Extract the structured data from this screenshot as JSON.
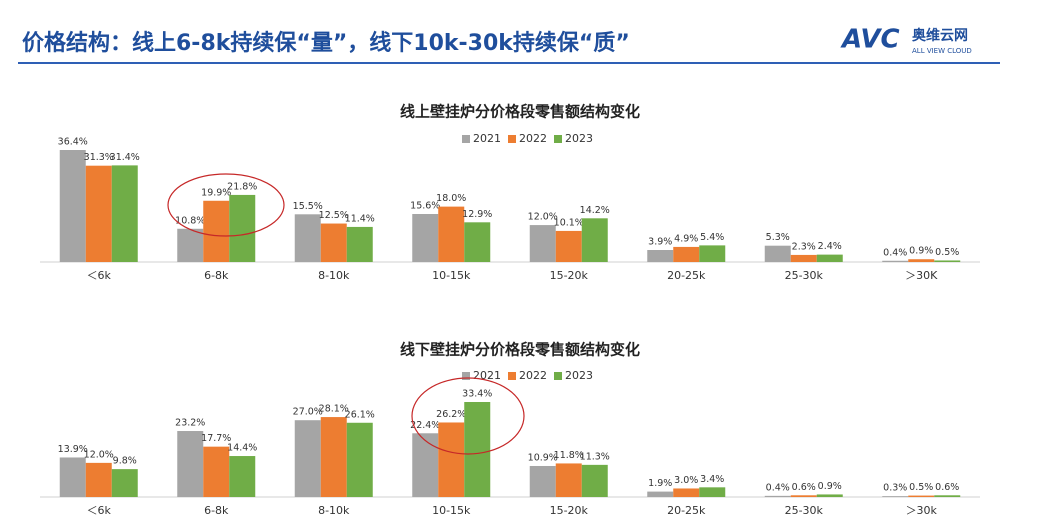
{
  "header": {
    "title": "价格结构：线上6-8k持续保“量”，线下10k-30k持续保“质”",
    "logo": "AVC",
    "logo_cn": "奥维云网",
    "logo_en": "ALL VIEW CLOUD"
  },
  "chart_data": [
    {
      "type": "bar",
      "title": "线上壁挂炉分价格段零售额结构变化",
      "categories": [
        "＜6k",
        "6-8k",
        "8-10k",
        "10-15k",
        "15-20k",
        "20-25k",
        "25-30k",
        "＞30K"
      ],
      "series": [
        {
          "name": "2021",
          "color": "#a5a5a5",
          "values": [
            36.4,
            10.8,
            15.5,
            15.6,
            12.0,
            3.9,
            5.3,
            0.4
          ],
          "value_labels": [
            "36.4%",
            "10.8%",
            "15.5%",
            "15.6%",
            "12.0%",
            "3.9%",
            "5.3%",
            "0.4%"
          ]
        },
        {
          "name": "2022",
          "color": "#ed7d31",
          "values": [
            31.3,
            19.9,
            12.5,
            18.0,
            10.1,
            4.9,
            2.3,
            0.9
          ],
          "value_labels": [
            "31.3%",
            "19.9%",
            "12.5%",
            "18.0%",
            "10.1%",
            "4.9%",
            "2.3%",
            "0.9%"
          ]
        },
        {
          "name": "2023",
          "color": "#70ad47",
          "values": [
            31.4,
            21.8,
            11.4,
            12.9,
            14.2,
            5.4,
            2.4,
            0.5
          ],
          "value_labels": [
            "31.4%",
            "21.8%",
            "11.4%",
            "12.9%",
            "14.2%",
            "5.4%",
            "2.4%",
            "0.5%"
          ]
        }
      ]
    },
    {
      "type": "bar",
      "title": "线下壁挂炉分价格段零售额结构变化",
      "categories": [
        "＜6k",
        "6-8k",
        "8-10k",
        "10-15k",
        "15-20k",
        "20-25k",
        "25-30k",
        "＞30k"
      ],
      "series": [
        {
          "name": "2021",
          "color": "#a5a5a5",
          "values": [
            13.9,
            23.2,
            27.0,
            22.4,
            10.9,
            1.9,
            0.4,
            0.3
          ],
          "value_labels": [
            "13.9%",
            "23.2%",
            "27.0%",
            "22.4%",
            "10.9%",
            "1.9%",
            "0.4%",
            "0.3%"
          ]
        },
        {
          "name": "2022",
          "color": "#ed7d31",
          "values": [
            12.0,
            17.7,
            28.1,
            26.2,
            11.8,
            3.0,
            0.6,
            0.5
          ],
          "value_labels": [
            "12.0%",
            "17.7%",
            "28.1%",
            "26.2%",
            "11.8%",
            "3.0%",
            "0.6%",
            "0.5%"
          ]
        },
        {
          "name": "2023",
          "color": "#70ad47",
          "values": [
            9.8,
            14.4,
            26.1,
            33.4,
            11.3,
            3.4,
            0.9,
            0.6
          ],
          "value_labels": [
            "9.8%",
            "14.4%",
            "26.1%",
            "33.4%",
            "11.3%",
            "3.4%",
            "0.9%",
            "0.6%"
          ]
        }
      ]
    }
  ]
}
